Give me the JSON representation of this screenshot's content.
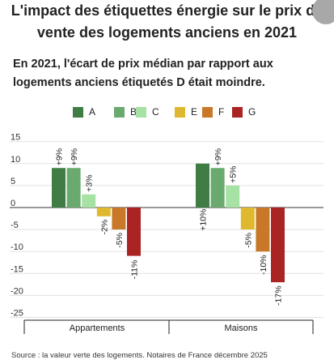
{
  "header": {
    "title_line1": "L'impact des étiquettes énergie sur le prix de",
    "title_line2": "vente des logements anciens en 2021",
    "subtitle_line1": "En 2021, l'écart de prix médian par rapport aux",
    "subtitle_line2": "logements anciens étiquetés D était moindre."
  },
  "legend": [
    {
      "label": "A",
      "color": "#3f7d45"
    },
    {
      "label": "B",
      "color": "#6aaa6f"
    },
    {
      "label": "C",
      "color": "#a6e2a4"
    },
    {
      "label": "E",
      "color": "#e0b830"
    },
    {
      "label": "F",
      "color": "#c87828"
    },
    {
      "label": "G",
      "color": "#aa2424"
    }
  ],
  "chart_data": {
    "type": "bar",
    "categories": [
      "Appartements",
      "Maisons"
    ],
    "series": [
      {
        "name": "A",
        "values": [
          9,
          10
        ],
        "labels": [
          "+9%",
          "+10%"
        ]
      },
      {
        "name": "B",
        "values": [
          9,
          9
        ],
        "labels": [
          "+9%",
          "+9%"
        ]
      },
      {
        "name": "C",
        "values": [
          3,
          5
        ],
        "labels": [
          "+3%",
          "+5%"
        ]
      },
      {
        "name": "E",
        "values": [
          -2,
          -5
        ],
        "labels": [
          "-2%",
          "-5%"
        ]
      },
      {
        "name": "F",
        "values": [
          -5,
          -10
        ],
        "labels": [
          "-5%",
          "-10%"
        ]
      },
      {
        "name": "G",
        "values": [
          -11,
          -17
        ],
        "labels": [
          "-11%",
          "-17%"
        ]
      }
    ],
    "yticks": [
      15,
      10,
      5,
      0,
      -5,
      -10,
      -15,
      -20,
      -25
    ],
    "ylim": [
      -25,
      15
    ],
    "legend_position": "top"
  },
  "footer": {
    "source": "Source : la valeur verte des logements. Notaires de France décembre 2025"
  }
}
